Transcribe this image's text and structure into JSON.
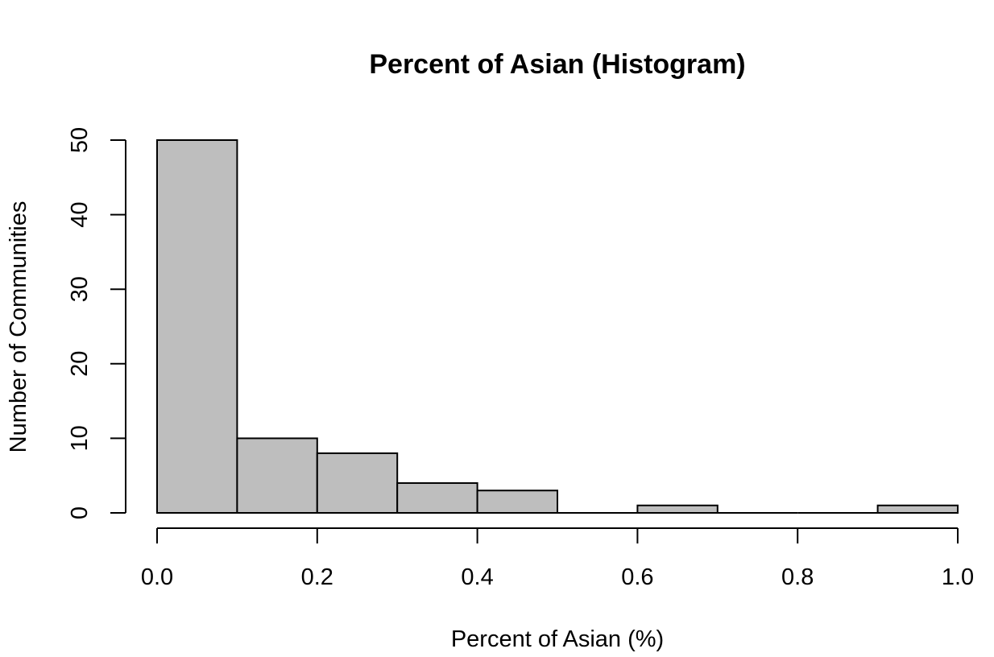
{
  "chart_data": {
    "type": "bar",
    "title": "Percent of Asian (Histogram)",
    "xlabel": "Percent of Asian (%)",
    "ylabel": "Number of Communities",
    "bins": [
      {
        "start": 0.0,
        "end": 0.1,
        "count": 50
      },
      {
        "start": 0.1,
        "end": 0.2,
        "count": 10
      },
      {
        "start": 0.2,
        "end": 0.3,
        "count": 8
      },
      {
        "start": 0.3,
        "end": 0.4,
        "count": 4
      },
      {
        "start": 0.4,
        "end": 0.5,
        "count": 3
      },
      {
        "start": 0.5,
        "end": 0.6,
        "count": 0
      },
      {
        "start": 0.6,
        "end": 0.7,
        "count": 1
      },
      {
        "start": 0.7,
        "end": 0.8,
        "count": 0
      },
      {
        "start": 0.8,
        "end": 0.9,
        "count": 0
      },
      {
        "start": 0.9,
        "end": 1.0,
        "count": 1
      }
    ],
    "xlim": [
      0,
      1
    ],
    "ylim": [
      0,
      50
    ],
    "x_ticks": [
      "0.0",
      "0.2",
      "0.4",
      "0.6",
      "0.8",
      "1.0"
    ],
    "y_ticks": [
      "0",
      "10",
      "20",
      "30",
      "40",
      "50"
    ],
    "grid": false,
    "legend": "none",
    "bar_color": "#bebebe",
    "edge_color": "#000000"
  }
}
